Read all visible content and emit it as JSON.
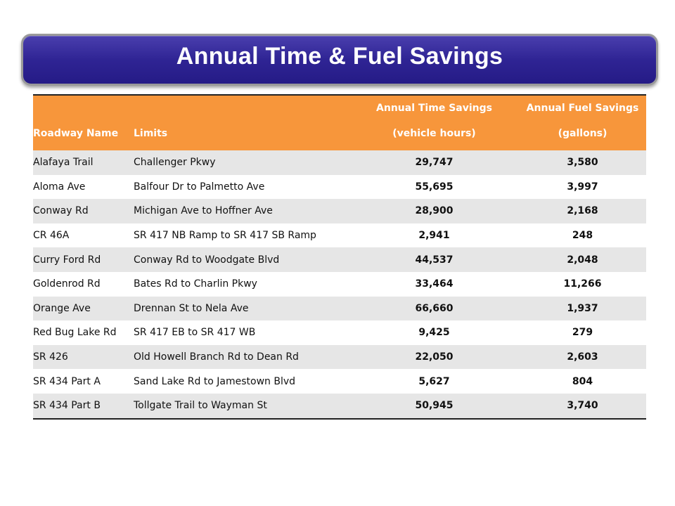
{
  "title": "Annual Time & Fuel Savings",
  "colors": {
    "banner": "#2f2494",
    "header": "#f7963b",
    "row_alt": "#e6e6e6"
  },
  "table": {
    "headers": {
      "roadway": "Roadway Name",
      "limits": "Limits",
      "time_line1": "Annual Time Savings",
      "time_line2": "(vehicle hours)",
      "fuel_line1": "Annual Fuel Savings",
      "fuel_line2": "(gallons)"
    },
    "rows": [
      {
        "roadway": "Alafaya Trail",
        "limits": "Challenger Pkwy",
        "time": "29,747",
        "fuel": "3,580"
      },
      {
        "roadway": "Aloma Ave",
        "limits": "Balfour Dr to Palmetto Ave",
        "time": "55,695",
        "fuel": "3,997"
      },
      {
        "roadway": "Conway Rd",
        "limits": "Michigan Ave to Hoffner Ave",
        "time": "28,900",
        "fuel": "2,168"
      },
      {
        "roadway": "CR 46A",
        "limits": "SR 417 NB Ramp to SR 417 SB Ramp",
        "time": "2,941",
        "fuel": "248"
      },
      {
        "roadway": "Curry Ford Rd",
        "limits": "Conway Rd to Woodgate Blvd",
        "time": "44,537",
        "fuel": "2,048"
      },
      {
        "roadway": "Goldenrod Rd",
        "limits": "Bates Rd to Charlin Pkwy",
        "time": "33,464",
        "fuel": "11,266"
      },
      {
        "roadway": "Orange Ave",
        "limits": "Drennan St to Nela Ave",
        "time": "66,660",
        "fuel": "1,937"
      },
      {
        "roadway": "Red Bug Lake Rd",
        "limits": "SR 417 EB to SR 417 WB",
        "time": "9,425",
        "fuel": "279"
      },
      {
        "roadway": "SR 426",
        "limits": "Old Howell Branch Rd to Dean Rd",
        "time": "22,050",
        "fuel": "2,603"
      },
      {
        "roadway": "SR 434 Part A",
        "limits": "Sand Lake Rd to Jamestown Blvd",
        "time": "5,627",
        "fuel": "804"
      },
      {
        "roadway": "SR 434 Part B",
        "limits": "Tollgate Trail  to Wayman St",
        "time": "50,945",
        "fuel": "3,740"
      }
    ]
  }
}
